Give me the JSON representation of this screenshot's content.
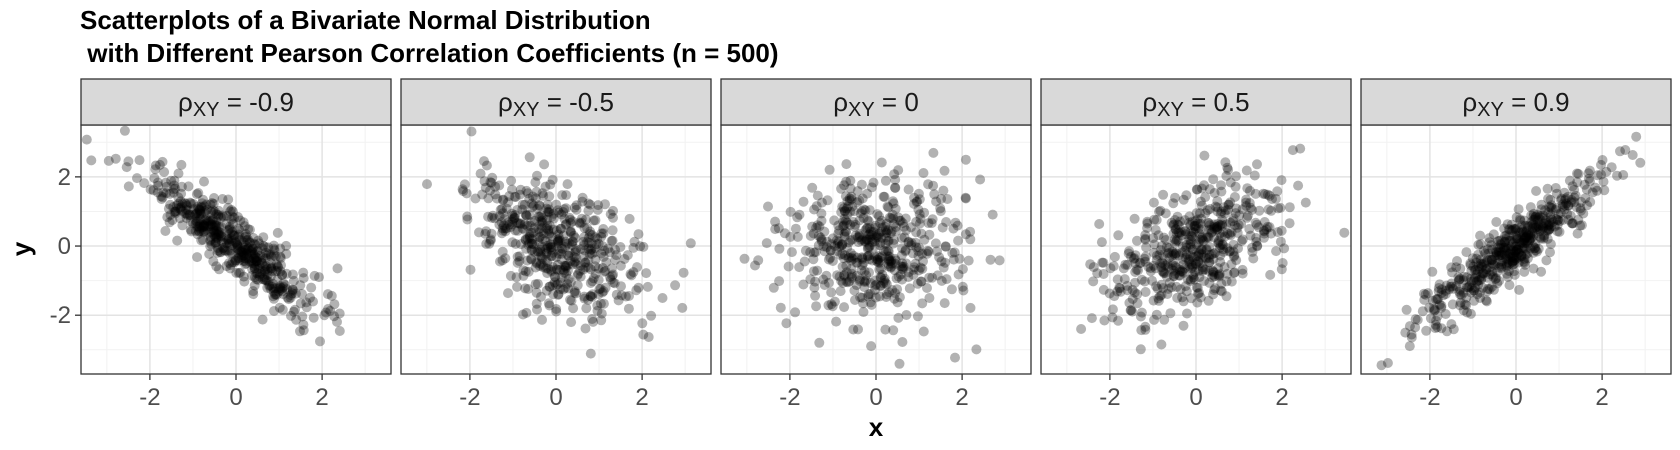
{
  "title": "Scatterplots of a Bivariate Normal Distribution\n with Different Pearson Correlation Coefficients (n = 500)",
  "chart_data": {
    "type": "scatter",
    "title": "Scatterplots of a Bivariate Normal Distribution\n with Different Pearson Correlation Coefficients (n = 500)",
    "xlabel": "x",
    "ylabel": "y",
    "n": 500,
    "xlim": [
      -3.6,
      3.6
    ],
    "ylim": [
      -3.7,
      3.5
    ],
    "xticks": [
      -2,
      0,
      2
    ],
    "yticks": [
      -2,
      0,
      2
    ],
    "tick_labels": {
      "x": [
        "-2",
        "0",
        "2"
      ],
      "y": [
        "-2",
        "0",
        "2"
      ]
    },
    "grid": true,
    "point_color": "#000000",
    "point_opacity": 0.3,
    "panels": [
      {
        "symbol": "ρ",
        "subscript": "XY",
        "value_text": " = -0.9",
        "rho": -0.9
      },
      {
        "symbol": "ρ",
        "subscript": "XY",
        "value_text": " = -0.5",
        "rho": -0.5
      },
      {
        "symbol": "ρ",
        "subscript": "XY",
        "value_text": " = 0",
        "rho": 0
      },
      {
        "symbol": "ρ",
        "subscript": "XY",
        "value_text": " = 0.5",
        "rho": 0.5
      },
      {
        "symbol": "ρ",
        "subscript": "XY",
        "value_text": " = 0.9",
        "rho": 0.9
      }
    ]
  }
}
